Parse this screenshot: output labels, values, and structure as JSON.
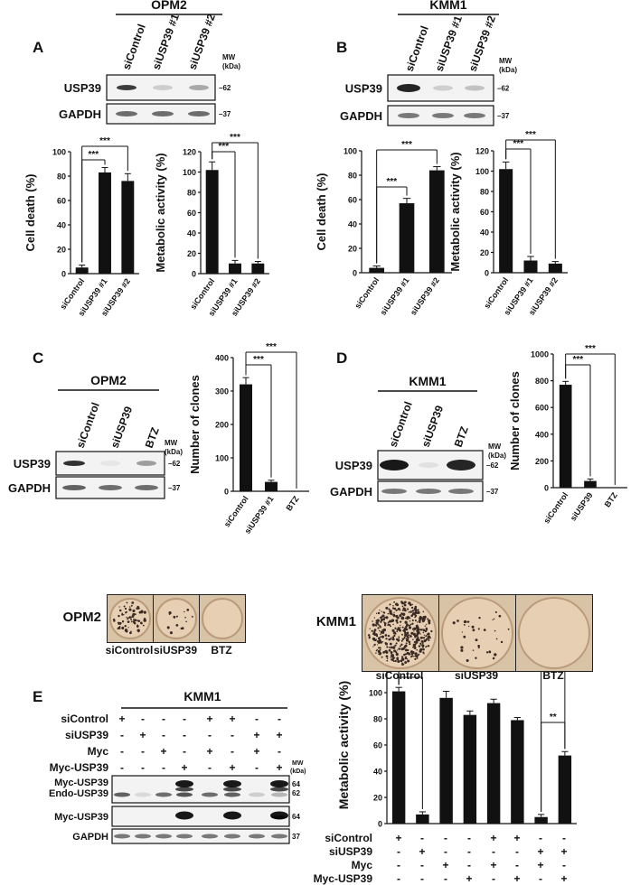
{
  "panels": {
    "A": {
      "letter": "A",
      "cell_line": "OPM2",
      "lanes": [
        "siControl",
        "siUSP39 #1",
        "siUSP39 #2"
      ],
      "blots": [
        "USP39",
        "GAPDH"
      ],
      "mw_header": [
        "MW",
        "(kDa)"
      ],
      "mw_marks": [
        "62",
        "37"
      ]
    },
    "B": {
      "letter": "B",
      "cell_line": "KMM1",
      "lanes": [
        "siControl",
        "siUSP39 #1",
        "siUSP39 #2"
      ],
      "blots": [
        "USP39",
        "GAPDH"
      ],
      "mw_header": [
        "MW",
        "(kDa)"
      ],
      "mw_marks": [
        "62",
        "37"
      ]
    },
    "C": {
      "letter": "C",
      "cell_line": "OPM2",
      "lanes": [
        "siControl",
        "siUSP39",
        "BTZ"
      ],
      "blots": [
        "USP39",
        "GAPDH"
      ],
      "mw_header": [
        "MW",
        "(kDa)"
      ],
      "mw_marks": [
        "62",
        "37"
      ],
      "plate_label": "OPM2",
      "plate_captions": [
        "siControl",
        "siUSP39",
        "BTZ"
      ]
    },
    "D": {
      "letter": "D",
      "cell_line": "KMM1",
      "lanes": [
        "siControl",
        "siUSP39",
        "BTZ"
      ],
      "blots": [
        "USP39",
        "GAPDH"
      ],
      "mw_header": [
        "MW",
        "(kDa)"
      ],
      "mw_marks": [
        "62",
        "37"
      ],
      "plate_label": "KMM1",
      "plate_captions": [
        "siControl",
        "siUSP39",
        "BTZ"
      ]
    },
    "E": {
      "letter": "E",
      "cell_line": "KMM1",
      "row_labels": [
        "siControl",
        "siUSP39",
        "Myc",
        "Myc-USP39"
      ],
      "signs": [
        [
          "+",
          "-",
          "-",
          "-",
          "+",
          "+",
          "-",
          "-"
        ],
        [
          "-",
          "+",
          "-",
          "-",
          "-",
          "-",
          "+",
          "+"
        ],
        [
          "-",
          "-",
          "+",
          "-",
          "+",
          "-",
          "+",
          "-"
        ],
        [
          "-",
          "-",
          "-",
          "+",
          "-",
          "+",
          "-",
          "+"
        ]
      ],
      "blots": [
        [
          "Myc-USP39",
          "Endo-USP39"
        ],
        [
          "Myc-USP39"
        ],
        [
          "GAPDH"
        ]
      ],
      "mw_header": [
        "MW",
        "(kDa)"
      ],
      "mw_marks": [
        "64",
        "62",
        "64",
        "37"
      ]
    }
  },
  "significance": "***",
  "significance_double": "**",
  "chart_data": [
    {
      "id": "A-death",
      "type": "bar",
      "categories": [
        "siControl",
        "siUSP39 #1",
        "siUSP39 #2"
      ],
      "values": [
        5,
        83,
        76
      ],
      "errors": [
        2,
        4,
        6
      ],
      "ylabel": "Cell death (%)",
      "ylim": [
        0,
        100
      ],
      "yticks": [
        0,
        20,
        40,
        60,
        80,
        100
      ],
      "sig": [
        [
          0,
          1,
          "***"
        ],
        [
          0,
          2,
          "***"
        ]
      ]
    },
    {
      "id": "A-meta",
      "type": "bar",
      "categories": [
        "siControl",
        "siUSP39 #1",
        "siUSP39 #2"
      ],
      "values": [
        102,
        10,
        10
      ],
      "errors": [
        8,
        3,
        2
      ],
      "ylabel": "Metabolic activity (%)",
      "ylim": [
        0,
        120
      ],
      "yticks": [
        0,
        20,
        40,
        60,
        80,
        100,
        120
      ],
      "sig": [
        [
          0,
          1,
          "***"
        ],
        [
          0,
          2,
          "***"
        ]
      ]
    },
    {
      "id": "B-death",
      "type": "bar",
      "categories": [
        "siControl",
        "siUSP39 #1",
        "siUSP39 #2"
      ],
      "values": [
        4,
        57,
        84
      ],
      "errors": [
        1.5,
        4,
        3
      ],
      "ylabel": "Cell death (%)",
      "ylim": [
        0,
        100
      ],
      "yticks": [
        0,
        20,
        40,
        60,
        80,
        100
      ],
      "sig": [
        [
          0,
          1,
          "***"
        ],
        [
          0,
          2,
          "***"
        ]
      ]
    },
    {
      "id": "B-meta",
      "type": "bar",
      "categories": [
        "siControl",
        "siUSP39 #1",
        "siUSP39 #2"
      ],
      "values": [
        102,
        12,
        9
      ],
      "errors": [
        7,
        4,
        2
      ],
      "ylabel": "Metabolic activity (%)",
      "ylim": [
        0,
        120
      ],
      "yticks": [
        0,
        20,
        40,
        60,
        80,
        100,
        120
      ],
      "sig": [
        [
          0,
          1,
          "***"
        ],
        [
          0,
          2,
          "***"
        ]
      ]
    },
    {
      "id": "C-clones",
      "type": "bar",
      "categories": [
        "siControl",
        "siUSP39 #1",
        "BTZ"
      ],
      "values": [
        320,
        28,
        0
      ],
      "errors": [
        20,
        5,
        0
      ],
      "ylabel": "Number of clones",
      "ylim": [
        0,
        400
      ],
      "yticks": [
        0,
        100,
        200,
        300,
        400
      ],
      "sig": [
        [
          0,
          1,
          "***"
        ],
        [
          0,
          2,
          "***"
        ]
      ]
    },
    {
      "id": "D-clones",
      "type": "bar",
      "categories": [
        "siControl",
        "siUSP39",
        "BTZ"
      ],
      "values": [
        770,
        50,
        0
      ],
      "errors": [
        25,
        15,
        0
      ],
      "ylabel": "Number of clones",
      "ylim": [
        0,
        1000
      ],
      "yticks": [
        0,
        200,
        400,
        600,
        800,
        1000
      ],
      "sig": [
        [
          0,
          1,
          "***"
        ],
        [
          0,
          2,
          "***"
        ]
      ]
    },
    {
      "id": "E-meta",
      "type": "bar",
      "categories": [
        "1",
        "2",
        "3",
        "4",
        "5",
        "6",
        "7",
        "8"
      ],
      "values": [
        101,
        7,
        96,
        83,
        92,
        79,
        5,
        52
      ],
      "errors": [
        3,
        2,
        5,
        3,
        3,
        2,
        2,
        3
      ],
      "ylabel": "Metabolic activity (%)",
      "ylim": [
        0,
        120
      ],
      "yticks": [
        0,
        20,
        40,
        60,
        80,
        100,
        120
      ],
      "sig": [
        [
          0,
          1,
          "***"
        ],
        [
          0,
          6,
          "***"
        ],
        [
          0,
          7,
          "**"
        ],
        [
          6,
          7,
          "**"
        ]
      ]
    }
  ]
}
